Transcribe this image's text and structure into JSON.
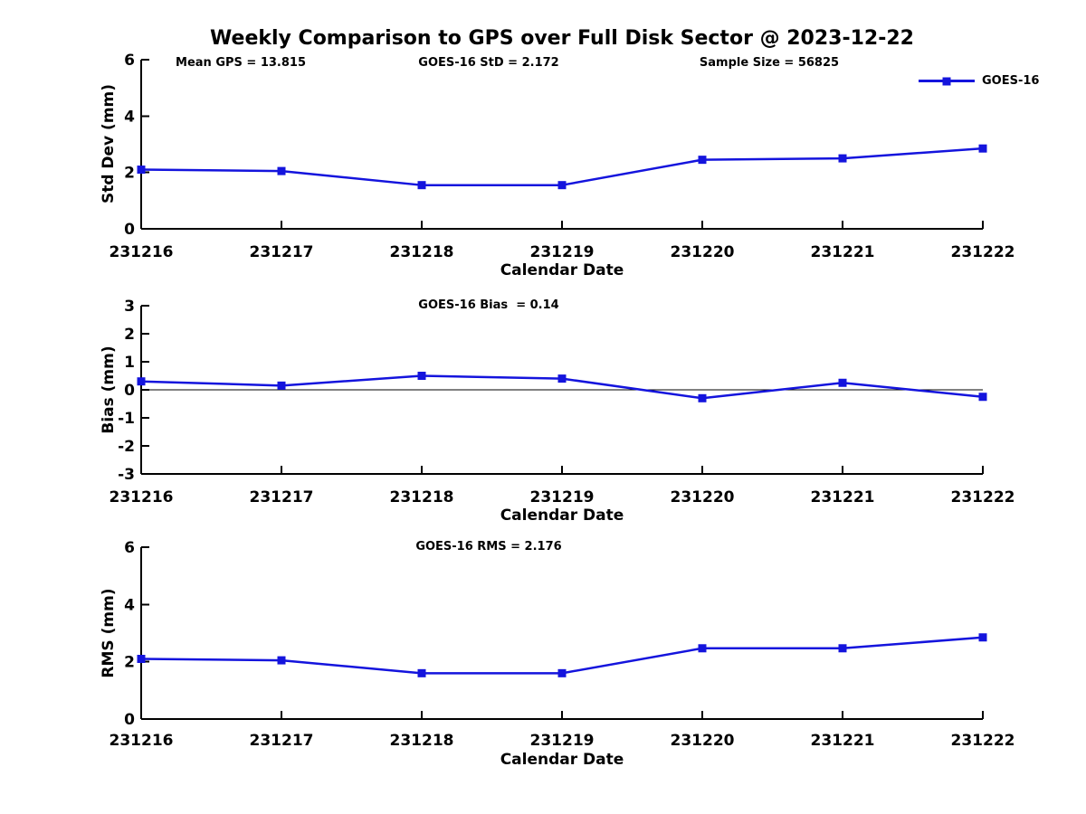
{
  "title": "Weekly Comparison to GPS over Full Disk Sector @ 2023-12-22",
  "legend": {
    "label": "GOES-16",
    "position": "top-right",
    "boxed": false
  },
  "colors": {
    "series": "#1414dd",
    "axis": "#000000",
    "background": "#ffffff"
  },
  "chart_data": [
    {
      "type": "line",
      "annotations": [
        "Mean GPS = 13.815",
        "GOES-16 StD = 2.172",
        "Sample Size = 56825"
      ],
      "categories": [
        "231216",
        "231217",
        "231218",
        "231219",
        "231220",
        "231221",
        "231222"
      ],
      "series": [
        {
          "name": "GOES-16",
          "marker": "square",
          "values": [
            2.1,
            2.05,
            1.55,
            1.55,
            2.45,
            2.5,
            2.85
          ]
        }
      ],
      "xlabel": "Calendar Date",
      "ylabel": "Std Dev (mm)",
      "ylim": [
        0,
        6
      ],
      "yticks": [
        0,
        2,
        4,
        6
      ],
      "grid": false,
      "zero_line": false
    },
    {
      "type": "line",
      "annotations": [
        "GOES-16 Bias  = 0.14"
      ],
      "categories": [
        "231216",
        "231217",
        "231218",
        "231219",
        "231220",
        "231221",
        "231222"
      ],
      "series": [
        {
          "name": "GOES-16",
          "marker": "square",
          "values": [
            0.3,
            0.15,
            0.5,
            0.4,
            -0.3,
            0.25,
            -0.25
          ]
        }
      ],
      "xlabel": "Calendar Date",
      "ylabel": "Bias (mm)",
      "ylim": [
        -3,
        3
      ],
      "yticks": [
        -3,
        -2,
        -1,
        0,
        1,
        2,
        3
      ],
      "grid": false,
      "zero_line": true
    },
    {
      "type": "line",
      "annotations": [
        "GOES-16 RMS = 2.176"
      ],
      "categories": [
        "231216",
        "231217",
        "231218",
        "231219",
        "231220",
        "231221",
        "231222"
      ],
      "series": [
        {
          "name": "GOES-16",
          "marker": "square",
          "values": [
            2.1,
            2.05,
            1.6,
            1.6,
            2.47,
            2.47,
            2.85
          ]
        }
      ],
      "xlabel": "Calendar Date",
      "ylabel": "RMS (mm)",
      "ylim": [
        0,
        6
      ],
      "yticks": [
        0,
        2,
        4,
        6
      ],
      "grid": false,
      "zero_line": false
    }
  ]
}
